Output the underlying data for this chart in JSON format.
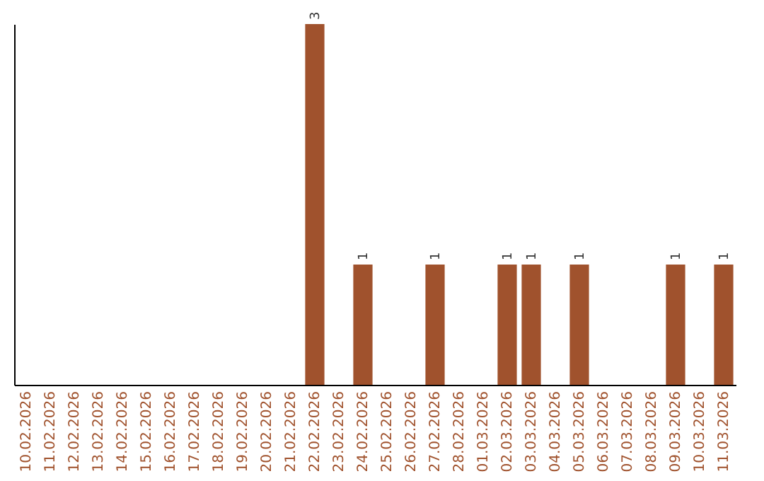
{
  "chart_data": {
    "type": "bar",
    "categories": [
      "10.02.2026",
      "11.02.2026",
      "12.02.2026",
      "13.02.2026",
      "14.02.2026",
      "15.02.2026",
      "16.02.2026",
      "17.02.2026",
      "18.02.2026",
      "19.02.2026",
      "20.02.2026",
      "21.02.2026",
      "22.02.2026",
      "23.02.2026",
      "24.02.2026",
      "25.02.2026",
      "26.02.2026",
      "27.02.2026",
      "28.02.2026",
      "01.03.2026",
      "02.03.2026",
      "03.03.2026",
      "04.03.2026",
      "05.03.2026",
      "06.03.2026",
      "07.03.2026",
      "08.03.2026",
      "09.03.2026",
      "10.03.2026",
      "11.03.2026"
    ],
    "values": [
      null,
      null,
      null,
      null,
      null,
      null,
      null,
      null,
      null,
      null,
      null,
      null,
      3,
      null,
      1,
      null,
      null,
      1,
      null,
      null,
      1,
      1,
      null,
      1,
      null,
      null,
      null,
      1,
      null,
      1
    ],
    "value_labels": [
      null,
      null,
      null,
      null,
      null,
      null,
      null,
      null,
      null,
      null,
      null,
      null,
      "3",
      null,
      "1",
      null,
      null,
      "1",
      null,
      null,
      "1",
      "1",
      null,
      "1",
      null,
      null,
      null,
      "1",
      null,
      "1"
    ],
    "color": "#a0522d",
    "tick_labels": "x",
    "grid": false
  }
}
